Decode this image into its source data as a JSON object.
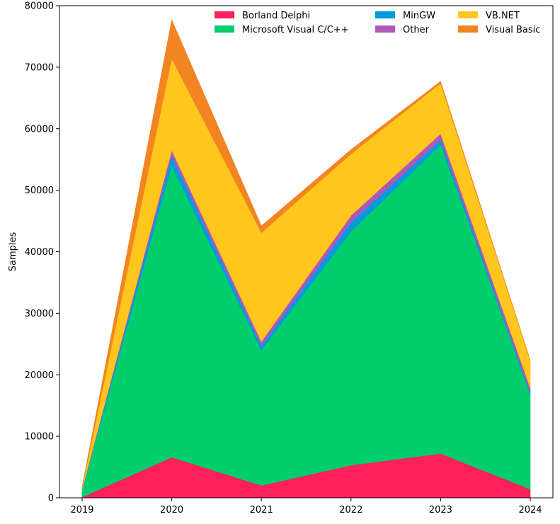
{
  "chart_data": {
    "type": "area",
    "stacked": true,
    "title": "",
    "xlabel": "",
    "ylabel": "Samples",
    "x": [
      "2019",
      "2020",
      "2021",
      "2022",
      "2023",
      "2024"
    ],
    "ylim": [
      0,
      80000
    ],
    "yticks": [
      0,
      10000,
      20000,
      30000,
      40000,
      50000,
      60000,
      70000,
      80000
    ],
    "grid": false,
    "legend": {
      "position": "top-right",
      "columns": 3
    },
    "series": [
      {
        "name": "Borland Delphi",
        "color": "#ff1f5b",
        "values": [
          100,
          6600,
          2000,
          5300,
          7200,
          1400
        ]
      },
      {
        "name": "Microsoft Visual C/C++",
        "color": "#00cd6c",
        "values": [
          1200,
          47400,
          22000,
          38000,
          50200,
          15400
        ]
      },
      {
        "name": "MinGW",
        "color": "#009ade",
        "values": [
          50,
          1600,
          700,
          1500,
          800,
          300
        ]
      },
      {
        "name": "Other",
        "color": "#af58ba",
        "values": [
          50,
          900,
          700,
          1100,
          1000,
          800
        ]
      },
      {
        "name": "VB.NET",
        "color": "#ffc61e",
        "values": [
          300,
          14900,
          17700,
          10000,
          8200,
          4400
        ]
      },
      {
        "name": "Visual Basic",
        "color": "#f28522",
        "values": [
          100,
          6300,
          1100,
          700,
          300,
          50
        ]
      }
    ]
  }
}
